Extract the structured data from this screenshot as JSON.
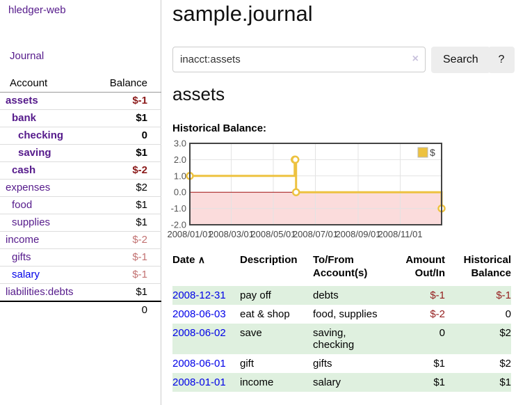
{
  "colors": {
    "link_visited_purple": "#551a8b",
    "link_blue": "#0000e8",
    "negative_strong": "#8b1a1a",
    "negative_faded": "#c27272",
    "row_stripe_green": "#dff0df",
    "chart_series_gold": "#edc240",
    "chart_negative_region": "#fbdcdc",
    "chart_zero_line": "#9f1010",
    "button_gray": "#ededed"
  },
  "icons": {
    "clear": "×",
    "sort_asc": "∧",
    "legend_swatch": "square"
  },
  "sidebar": {
    "brand": "hledger-web",
    "nav_journal": "Journal",
    "accounts_table": {
      "headers": {
        "account": "Account",
        "balance": "Balance"
      },
      "rows": [
        {
          "name": "assets",
          "level": 1,
          "bold": true,
          "balance": "$-1",
          "balance_style": "negstrong",
          "link": "visited"
        },
        {
          "name": "bank",
          "level": 2,
          "bold": true,
          "balance": "$1",
          "balance_style": "",
          "link": "visited"
        },
        {
          "name": "checking",
          "level": 3,
          "bold": true,
          "balance": "0",
          "balance_style": "",
          "link": "visited"
        },
        {
          "name": "saving",
          "level": 3,
          "bold": true,
          "balance": "$1",
          "balance_style": "",
          "link": "visited"
        },
        {
          "name": "cash",
          "level": 2,
          "bold": true,
          "balance": "$-2",
          "balance_style": "negstrong",
          "link": "visited"
        },
        {
          "name": "expenses",
          "level": 1,
          "bold": false,
          "balance": "$2",
          "balance_style": "",
          "link": "visited"
        },
        {
          "name": "food",
          "level": 2,
          "bold": false,
          "balance": "$1",
          "balance_style": "",
          "link": "visited"
        },
        {
          "name": "supplies",
          "level": 2,
          "bold": false,
          "balance": "$1",
          "balance_style": "",
          "link": "visited"
        },
        {
          "name": "income",
          "level": 1,
          "bold": false,
          "balance": "$-2",
          "balance_style": "negfaded",
          "link": "visited"
        },
        {
          "name": "gifts",
          "level": 2,
          "bold": false,
          "balance": "$-1",
          "balance_style": "negfaded",
          "link": "visited"
        },
        {
          "name": "salary",
          "level": 2,
          "bold": false,
          "balance": "$-1",
          "balance_style": "negfaded",
          "link": "unvisited"
        },
        {
          "name": "liabilities:debts",
          "level": 1,
          "bold": false,
          "balance": "$1",
          "balance_style": "",
          "link": "visited"
        }
      ],
      "total": "0"
    }
  },
  "header": {
    "title": "sample.journal"
  },
  "search": {
    "value": "inacct:assets",
    "button_label": "Search",
    "help_label": "?"
  },
  "account_page": {
    "heading": "assets",
    "chart_label": "Historical Balance:"
  },
  "chart_data": {
    "type": "line",
    "style": "step",
    "title": "Historical Balance",
    "series": [
      {
        "name": "$",
        "color": "#edc240",
        "points": [
          [
            "2008-01-01",
            1
          ],
          [
            "2008-06-01",
            2
          ],
          [
            "2008-06-02",
            2
          ],
          [
            "2008-06-03",
            0
          ],
          [
            "2008-12-31",
            -1
          ]
        ]
      }
    ],
    "x_tick_labels": [
      "2008/01/01",
      "2008/03/01",
      "2008/05/01",
      "2008/07/01",
      "2008/09/01",
      "2008/11/01"
    ],
    "y_tick_labels": [
      "3.0",
      "2.0",
      "1.0",
      "0.0",
      "-1.0",
      "-2.0"
    ],
    "ylim": [
      -2,
      3
    ],
    "xlim": [
      "2008-01-01",
      "2008-12-31"
    ],
    "grid": true,
    "legend_position": "top-right",
    "negative_region_color": "#fbdcdc",
    "zero_line_color": "#9f1010"
  },
  "register": {
    "headers": {
      "date": {
        "l1": "Date",
        "l2": ""
      },
      "description": {
        "l1": "Description",
        "l2": ""
      },
      "accounts": {
        "l1": "To/From",
        "l2": "Account(s)"
      },
      "amount": {
        "l1": "Amount",
        "l2": "Out/In"
      },
      "balance": {
        "l1": "Historical",
        "l2": "Balance"
      }
    },
    "rows": [
      {
        "date": "2008-12-31",
        "description": "pay off",
        "account_lines": [
          "debts"
        ],
        "amount": "$-1",
        "amount_neg": true,
        "balance": "$-1",
        "balance_neg": true
      },
      {
        "date": "2008-06-03",
        "description": "eat & shop",
        "account_lines": [
          "food, supplies"
        ],
        "amount": "$-2",
        "amount_neg": true,
        "balance": "0",
        "balance_neg": false
      },
      {
        "date": "2008-06-02",
        "description": "save",
        "account_lines": [
          "saving,",
          "checking"
        ],
        "amount": "0",
        "amount_neg": false,
        "balance": "$2",
        "balance_neg": false
      },
      {
        "date": "2008-06-01",
        "description": "gift",
        "account_lines": [
          "gifts"
        ],
        "amount": "$1",
        "amount_neg": false,
        "balance": "$2",
        "balance_neg": false
      },
      {
        "date": "2008-01-01",
        "description": "income",
        "account_lines": [
          "salary"
        ],
        "amount": "$1",
        "amount_neg": false,
        "balance": "$1",
        "balance_neg": false
      }
    ]
  }
}
